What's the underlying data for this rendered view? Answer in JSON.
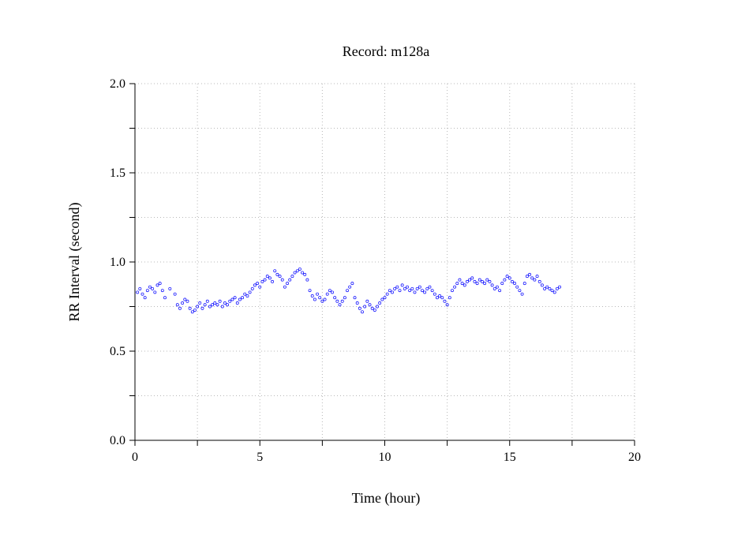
{
  "chart_data": {
    "type": "scatter",
    "title": "Record:  m128a",
    "xlabel": "Time (hour)",
    "ylabel": "RR Interval (second)",
    "xlim": [
      0,
      20
    ],
    "ylim": [
      0,
      2
    ],
    "x_ticks": [
      0,
      2.5,
      5,
      7.5,
      10,
      12.5,
      15,
      17.5,
      20
    ],
    "x_tick_labels": [
      "0",
      "",
      "5",
      "",
      "10",
      "",
      "15",
      "",
      "20"
    ],
    "y_ticks": [
      0,
      0.25,
      0.5,
      0.75,
      1.0,
      1.25,
      1.5,
      1.75,
      2.0
    ],
    "y_tick_labels": [
      "0.0",
      "",
      "0.5",
      "",
      "1.0",
      "",
      "1.5",
      "",
      "2.0"
    ],
    "grid": true,
    "marker": "open-circle",
    "color": "#0000ff",
    "series": [
      {
        "x": [
          0.1,
          0.2,
          0.3,
          0.4,
          0.5,
          0.6,
          0.7,
          0.8,
          0.9,
          1.0,
          1.1,
          1.2,
          1.4,
          1.6,
          1.7,
          1.8,
          1.9,
          2.0,
          2.1,
          2.2,
          2.3,
          2.4,
          2.5,
          2.6,
          2.7,
          2.8,
          2.9,
          3.0,
          3.1,
          3.2,
          3.3,
          3.4,
          3.5,
          3.6,
          3.7,
          3.8,
          3.9,
          4.0,
          4.1,
          4.2,
          4.3,
          4.4,
          4.5,
          4.6,
          4.7,
          4.8,
          4.9,
          5.0,
          5.1,
          5.2,
          5.3,
          5.4,
          5.5,
          5.6,
          5.7,
          5.8,
          5.9,
          6.0,
          6.1,
          6.2,
          6.3,
          6.4,
          6.5,
          6.6,
          6.7,
          6.8,
          6.9,
          7.0,
          7.1,
          7.2,
          7.3,
          7.4,
          7.5,
          7.6,
          7.7,
          7.8,
          7.9,
          8.0,
          8.1,
          8.2,
          8.3,
          8.4,
          8.5,
          8.6,
          8.7,
          8.8,
          8.9,
          9.0,
          9.1,
          9.2,
          9.3,
          9.4,
          9.5,
          9.6,
          9.7,
          9.8,
          9.9,
          10.0,
          10.1,
          10.2,
          10.3,
          10.4,
          10.5,
          10.6,
          10.7,
          10.8,
          10.9,
          11.0,
          11.1,
          11.2,
          11.3,
          11.4,
          11.5,
          11.6,
          11.7,
          11.8,
          11.9,
          12.0,
          12.1,
          12.2,
          12.3,
          12.4,
          12.5,
          12.6,
          12.7,
          12.8,
          12.9,
          13.0,
          13.1,
          13.2,
          13.3,
          13.4,
          13.5,
          13.6,
          13.7,
          13.8,
          13.9,
          14.0,
          14.1,
          14.2,
          14.3,
          14.4,
          14.5,
          14.6,
          14.7,
          14.8,
          14.9,
          15.0,
          15.1,
          15.2,
          15.3,
          15.4,
          15.5,
          15.6,
          15.7,
          15.8,
          15.9,
          16.0,
          16.1,
          16.2,
          16.3,
          16.4,
          16.5,
          16.6,
          16.7,
          16.8,
          16.9,
          17.0
        ],
        "y": [
          0.83,
          0.85,
          0.82,
          0.8,
          0.84,
          0.86,
          0.85,
          0.83,
          0.87,
          0.88,
          0.84,
          0.8,
          0.85,
          0.82,
          0.76,
          0.74,
          0.77,
          0.79,
          0.78,
          0.74,
          0.72,
          0.73,
          0.75,
          0.77,
          0.74,
          0.76,
          0.78,
          0.75,
          0.76,
          0.77,
          0.76,
          0.78,
          0.75,
          0.77,
          0.76,
          0.78,
          0.79,
          0.8,
          0.77,
          0.79,
          0.8,
          0.82,
          0.81,
          0.83,
          0.85,
          0.87,
          0.88,
          0.86,
          0.89,
          0.9,
          0.92,
          0.91,
          0.89,
          0.95,
          0.93,
          0.92,
          0.9,
          0.86,
          0.88,
          0.9,
          0.92,
          0.94,
          0.95,
          0.96,
          0.94,
          0.93,
          0.9,
          0.84,
          0.81,
          0.79,
          0.82,
          0.8,
          0.78,
          0.79,
          0.82,
          0.84,
          0.83,
          0.8,
          0.78,
          0.76,
          0.78,
          0.8,
          0.84,
          0.86,
          0.88,
          0.8,
          0.77,
          0.74,
          0.72,
          0.75,
          0.78,
          0.76,
          0.74,
          0.73,
          0.75,
          0.77,
          0.79,
          0.8,
          0.82,
          0.84,
          0.83,
          0.85,
          0.86,
          0.84,
          0.87,
          0.85,
          0.86,
          0.84,
          0.85,
          0.83,
          0.85,
          0.86,
          0.84,
          0.83,
          0.85,
          0.86,
          0.84,
          0.82,
          0.8,
          0.81,
          0.8,
          0.78,
          0.76,
          0.8,
          0.84,
          0.86,
          0.88,
          0.9,
          0.88,
          0.87,
          0.89,
          0.9,
          0.91,
          0.89,
          0.88,
          0.9,
          0.89,
          0.88,
          0.9,
          0.89,
          0.87,
          0.85,
          0.86,
          0.84,
          0.88,
          0.9,
          0.92,
          0.91,
          0.89,
          0.88,
          0.86,
          0.84,
          0.82,
          0.88,
          0.92,
          0.93,
          0.91,
          0.9,
          0.92,
          0.89,
          0.87,
          0.85,
          0.86,
          0.85,
          0.84,
          0.83,
          0.85,
          0.86
        ]
      }
    ]
  }
}
